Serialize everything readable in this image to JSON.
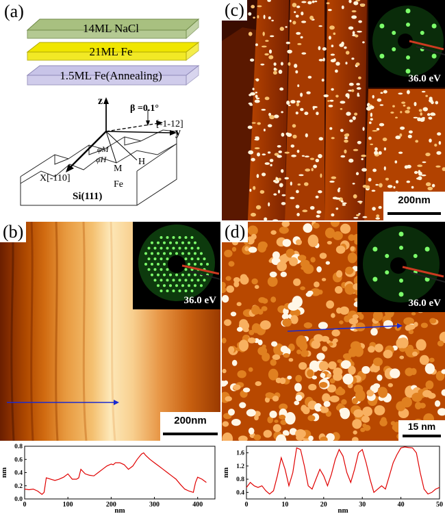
{
  "panel_a": {
    "label": "(a)",
    "layers": [
      {
        "name": "14ML NaCl",
        "color": "#a8c080",
        "edge": "#6f8a48"
      },
      {
        "name": "21ML Fe",
        "color": "#f0e600",
        "edge": "#b0a800"
      },
      {
        "name": "1.5ML Fe(Annealing)",
        "color": "#c8c4e8",
        "edge": "#8f89b8"
      }
    ],
    "axis_z": "z",
    "axis_y": "y",
    "beta": "β =0.1°",
    "dir_1": "[-1-12]",
    "dir_2": "X[-110]",
    "phi_m": "φM",
    "phi_h": "φH",
    "label_M": "M",
    "label_H": "H",
    "label_Fe": "Fe",
    "substrate": "Si(111)"
  },
  "panel_b": {
    "label": "(b)",
    "leed_energy": "36.0 eV",
    "scale": "200nm"
  },
  "panel_c": {
    "label": "(c)",
    "leed_energy": "36.0 eV",
    "scale": "200nm"
  },
  "panel_d": {
    "label": "(d)",
    "leed_energy": "36.0 eV",
    "scale": "15 nm"
  },
  "chart_data": [
    {
      "type": "line",
      "xlabel": "nm",
      "ylabel": "nm",
      "xlim": [
        0,
        440
      ],
      "ylim": [
        0,
        0.8
      ],
      "xticks": [
        0,
        100,
        200,
        300,
        400
      ],
      "yticks": [
        0.0,
        0.2,
        0.4,
        0.6,
        0.8
      ],
      "color": "#e00000",
      "x": [
        0,
        10,
        20,
        30,
        40,
        45,
        50,
        60,
        70,
        80,
        90,
        100,
        110,
        120,
        125,
        130,
        140,
        150,
        160,
        170,
        180,
        190,
        200,
        205,
        210,
        220,
        230,
        240,
        250,
        260,
        270,
        275,
        280,
        290,
        300,
        310,
        320,
        330,
        340,
        350,
        360,
        370,
        380,
        390,
        395,
        400,
        410,
        420
      ],
      "y": [
        0.15,
        0.14,
        0.15,
        0.12,
        0.07,
        0.1,
        0.32,
        0.3,
        0.28,
        0.3,
        0.33,
        0.38,
        0.3,
        0.3,
        0.32,
        0.45,
        0.38,
        0.36,
        0.35,
        0.4,
        0.45,
        0.5,
        0.53,
        0.52,
        0.55,
        0.55,
        0.52,
        0.45,
        0.5,
        0.6,
        0.68,
        0.7,
        0.66,
        0.6,
        0.55,
        0.5,
        0.45,
        0.4,
        0.35,
        0.3,
        0.22,
        0.15,
        0.12,
        0.1,
        0.25,
        0.33,
        0.3,
        0.25
      ]
    },
    {
      "type": "line",
      "xlabel": "nm",
      "ylabel": "nm",
      "xlim": [
        0,
        50
      ],
      "ylim": [
        0.2,
        1.8
      ],
      "xticks": [
        0,
        10,
        20,
        30,
        40,
        50
      ],
      "yticks": [
        0.4,
        0.8,
        1.2,
        1.6
      ],
      "color": "#e00000",
      "x": [
        0,
        1,
        2,
        3,
        4,
        5,
        6,
        7,
        8,
        9,
        10,
        11,
        12,
        13,
        14,
        15,
        16,
        17,
        18,
        19,
        20,
        21,
        22,
        23,
        24,
        25,
        26,
        27,
        28,
        29,
        30,
        31,
        32,
        33,
        34,
        35,
        36,
        37,
        38,
        39,
        40,
        41,
        42,
        43,
        44,
        45,
        46,
        47,
        48,
        49,
        50
      ],
      "y": [
        0.55,
        0.7,
        0.6,
        0.55,
        0.6,
        0.45,
        0.35,
        0.45,
        0.9,
        1.45,
        1.1,
        0.6,
        1.0,
        1.75,
        1.7,
        1.2,
        0.6,
        0.5,
        0.8,
        1.1,
        0.9,
        0.6,
        0.95,
        1.4,
        1.7,
        1.5,
        1.0,
        0.7,
        1.1,
        1.6,
        1.7,
        1.3,
        0.8,
        0.4,
        0.5,
        0.6,
        0.5,
        0.9,
        1.3,
        1.55,
        1.75,
        1.78,
        1.76,
        1.75,
        1.6,
        1.0,
        0.5,
        0.35,
        0.4,
        0.5,
        0.55
      ]
    }
  ]
}
